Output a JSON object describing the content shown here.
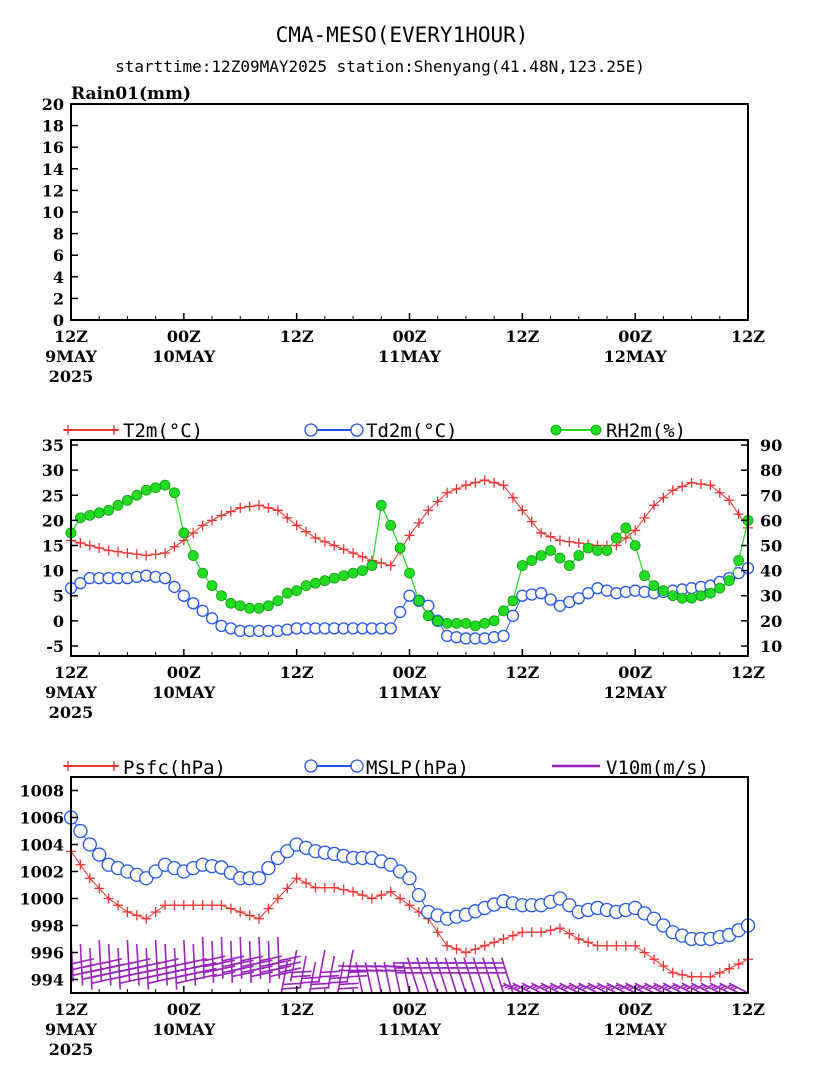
{
  "header": {
    "title": "CMA-MESO(EVERY1HOUR)",
    "subtitle": "starttime:12Z09MAY2025   station:Shenyang(41.48N,123.25E)"
  },
  "x_axis": {
    "ticks": [
      {
        "hour": 0,
        "line1": "12Z",
        "line2": "9MAY",
        "line3": "2025"
      },
      {
        "hour": 12,
        "line1": "00Z",
        "line2": "10MAY",
        "line3": ""
      },
      {
        "hour": 24,
        "line1": "12Z",
        "line2": "",
        "line3": ""
      },
      {
        "hour": 36,
        "line1": "00Z",
        "line2": "11MAY",
        "line3": ""
      },
      {
        "hour": 48,
        "line1": "12Z",
        "line2": "",
        "line3": ""
      },
      {
        "hour": 60,
        "line1": "00Z",
        "line2": "12MAY",
        "line3": ""
      },
      {
        "hour": 72,
        "line1": "12Z",
        "line2": "",
        "line3": ""
      }
    ]
  },
  "colors": {
    "t2m": "#ee3333",
    "td2m": "#2255ee",
    "rh2m": "#22dd22",
    "psfc": "#ee3333",
    "mslp": "#2255ee",
    "wind": "#9922bb"
  },
  "chart_data": [
    {
      "type": "bar",
      "title": "Rain01(mm)",
      "x_unit": "forecast hour from 12Z09MAY2025",
      "ylim": [
        0,
        20
      ],
      "yticks": [
        "0",
        "2",
        "4",
        "6",
        "8",
        "10",
        "12",
        "14",
        "16",
        "18",
        "20"
      ],
      "values": []
    },
    {
      "type": "line",
      "x_unit": "forecast hour from 12Z09MAY2025",
      "ylim_left": [
        -7,
        36
      ],
      "yticks_left": [
        "-5",
        "0",
        "5",
        "10",
        "15",
        "20",
        "25",
        "30",
        "35"
      ],
      "ylim_right": [
        6,
        92
      ],
      "yticks_right": [
        "10",
        "20",
        "30",
        "40",
        "50",
        "60",
        "70",
        "80",
        "90"
      ],
      "legend": [
        "T2m(°C)",
        "Td2m(°C)",
        "RH2m(%)"
      ],
      "series": [
        {
          "name": "T2m(°C)",
          "axis": "left",
          "x": [
            0,
            2,
            4,
            6,
            8,
            10,
            12,
            14,
            16,
            18,
            20,
            22,
            24,
            26,
            28,
            30,
            32,
            34,
            36,
            38,
            40,
            42,
            44,
            46,
            48,
            50,
            52,
            54,
            56,
            58,
            60,
            62,
            64,
            66,
            68,
            70,
            72
          ],
          "y": [
            16,
            15,
            14,
            13.5,
            13,
            13.5,
            16,
            19,
            21,
            22.5,
            23,
            22,
            19,
            16.5,
            15,
            13.5,
            12,
            11,
            17,
            22,
            25.5,
            27,
            28,
            27,
            22,
            17.5,
            16,
            15.5,
            15,
            15,
            18,
            23,
            26,
            27.5,
            27,
            24,
            18.5
          ]
        },
        {
          "name": "Td2m(°C)",
          "axis": "left",
          "x": [
            0,
            2,
            4,
            6,
            8,
            10,
            12,
            14,
            16,
            18,
            20,
            22,
            24,
            26,
            28,
            30,
            32,
            34,
            36,
            38,
            40,
            42,
            44,
            46,
            48,
            50,
            52,
            54,
            56,
            58,
            60,
            62,
            64,
            66,
            68,
            70,
            72
          ],
          "y": [
            6.5,
            8.5,
            8.5,
            8.5,
            9,
            8.5,
            5,
            2,
            -1,
            -2,
            -2,
            -2,
            -1.5,
            -1.5,
            -1.5,
            -1.5,
            -1.5,
            -1.5,
            5,
            3,
            -3,
            -3.5,
            -3.5,
            -3,
            5,
            5.5,
            3,
            4.5,
            6.5,
            5.5,
            6,
            5.5,
            6,
            6.5,
            7,
            8.5,
            10.5
          ]
        },
        {
          "name": "RH2m(%)",
          "axis": "right",
          "x": [
            0,
            1,
            2,
            3,
            4,
            5,
            6,
            7,
            8,
            9,
            10,
            11,
            12,
            13,
            14,
            15,
            16,
            17,
            18,
            19,
            20,
            21,
            22,
            23,
            24,
            25,
            26,
            27,
            28,
            29,
            30,
            31,
            32,
            33,
            34,
            35,
            36,
            37,
            38,
            39,
            40,
            41,
            42,
            43,
            44,
            45,
            46,
            47,
            48,
            49,
            50,
            51,
            52,
            53,
            54,
            55,
            56,
            57,
            58,
            59,
            60,
            61,
            62,
            63,
            64,
            65,
            66,
            67,
            68,
            69,
            70,
            71,
            72
          ],
          "y": [
            55,
            61,
            62,
            63,
            64,
            66,
            68,
            70,
            72,
            73,
            74,
            71,
            55,
            46,
            39,
            34,
            30,
            27,
            26,
            25,
            25,
            26,
            28,
            31,
            32,
            34,
            35,
            36,
            37,
            38,
            39,
            40,
            42,
            66,
            58,
            49,
            39,
            28,
            22,
            20,
            19,
            19,
            19,
            18,
            19,
            20,
            24,
            28,
            42,
            44,
            46,
            48,
            45,
            42,
            46,
            49,
            48,
            48,
            53,
            57,
            50,
            38,
            34,
            32,
            30,
            29,
            29,
            30,
            31,
            33,
            36,
            44,
            60
          ]
        }
      ]
    },
    {
      "type": "line",
      "x_unit": "forecast hour from 12Z09MAY2025",
      "ylim": [
        993,
        1009
      ],
      "yticks": [
        "994",
        "996",
        "998",
        "1000",
        "1002",
        "1004",
        "1006",
        "1008"
      ],
      "legend": [
        "Psfc(hPa)",
        "MSLP(hPa)",
        "V10m(m/s)"
      ],
      "series": [
        {
          "name": "Psfc(hPa)",
          "x": [
            0,
            2,
            4,
            6,
            8,
            10,
            12,
            14,
            16,
            18,
            20,
            22,
            24,
            26,
            28,
            30,
            32,
            34,
            36,
            38,
            40,
            42,
            44,
            46,
            48,
            50,
            52,
            54,
            56,
            58,
            60,
            62,
            64,
            66,
            68,
            70,
            72
          ],
          "y": [
            1003.5,
            1001.5,
            1000,
            999,
            998.5,
            999.5,
            999.5,
            999.5,
            999.5,
            999,
            998.5,
            1000,
            1001.5,
            1000.8,
            1000.8,
            1000.5,
            1000,
            1000.5,
            999.5,
            998.5,
            996.5,
            996,
            996.5,
            997,
            997.5,
            997.5,
            997.8,
            997,
            996.5,
            996.5,
            996.5,
            995.5,
            994.5,
            994.2,
            994.2,
            994.8,
            995.5
          ]
        },
        {
          "name": "MSLP(hPa)",
          "x": [
            0,
            2,
            4,
            6,
            8,
            10,
            12,
            14,
            16,
            18,
            20,
            22,
            24,
            26,
            28,
            30,
            32,
            34,
            36,
            38,
            40,
            42,
            44,
            46,
            48,
            50,
            52,
            54,
            56,
            58,
            60,
            62,
            64,
            66,
            68,
            70,
            72
          ],
          "y": [
            1006,
            1004,
            1002.5,
            1002,
            1001.5,
            1002.5,
            1002,
            1002.5,
            1002.3,
            1001.5,
            1001.5,
            1003,
            1004,
            1003.5,
            1003.3,
            1003,
            1003,
            1002.5,
            1001.5,
            999,
            998.5,
            998.8,
            999.3,
            999.8,
            999.5,
            999.5,
            1000,
            999,
            999.3,
            999,
            999.3,
            998.5,
            997.5,
            997,
            997,
            997.3,
            998
          ]
        },
        {
          "name": "V10m(m/s)",
          "style": "wind barbs along x axis",
          "values": []
        }
      ]
    }
  ]
}
